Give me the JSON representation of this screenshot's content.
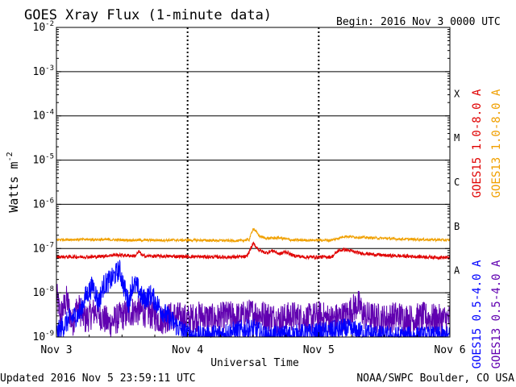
{
  "header": {
    "title": "GOES Xray Flux (1-minute data)",
    "begin_label": "Begin:",
    "begin_value": "2016 Nov 3 0000 UTC"
  },
  "footer": {
    "updated": "Updated 2016 Nov  5 23:59:11 UTC",
    "credit": "NOAA/SWPC Boulder, CO USA"
  },
  "chart_data": {
    "type": "line",
    "title": "GOES Xray Flux (1-minute data)",
    "xlabel": "Universal Time",
    "ylabel": "Watts m",
    "ylabel_sup": "-2",
    "yscale": "log",
    "ylim": [
      1e-09,
      0.01
    ],
    "xlim_days": [
      0,
      3
    ],
    "x_ticks": [
      {
        "day": 0,
        "label": "Nov 3"
      },
      {
        "day": 1,
        "label": "Nov 4"
      },
      {
        "day": 2,
        "label": "Nov 5"
      },
      {
        "day": 3,
        "label": "Nov 6"
      }
    ],
    "y_ticks": [
      {
        "exp": -2,
        "base": "10",
        "sup": "-2"
      },
      {
        "exp": -3,
        "base": "10",
        "sup": "-3"
      },
      {
        "exp": -4,
        "base": "10",
        "sup": "-4"
      },
      {
        "exp": -5,
        "base": "10",
        "sup": "-5"
      },
      {
        "exp": -6,
        "base": "10",
        "sup": "-6"
      },
      {
        "exp": -7,
        "base": "10",
        "sup": "-7"
      },
      {
        "exp": -8,
        "base": "10",
        "sup": "-8"
      },
      {
        "exp": -9,
        "base": "10",
        "sup": "-9"
      }
    ],
    "flare_classes": [
      {
        "label": "X",
        "exp": -4
      },
      {
        "label": "M",
        "exp": -5
      },
      {
        "label": "C",
        "exp": -6
      },
      {
        "label": "B",
        "exp": -7
      },
      {
        "label": "A",
        "exp": -8
      }
    ],
    "grid": "horizontal lines at decades, dotted vertical at day boundaries",
    "series": [
      {
        "name": "GOES15 1.0-8.0 A",
        "color": "#e00000",
        "points": [
          [
            0,
            6.5e-08
          ],
          [
            0.3,
            6.5e-08
          ],
          [
            0.45,
            7.2e-08
          ],
          [
            0.6,
            6.8e-08
          ],
          [
            0.63,
            8.5e-08
          ],
          [
            0.66,
            6.8e-08
          ],
          [
            1.0,
            6.6e-08
          ],
          [
            1.3,
            6.4e-08
          ],
          [
            1.45,
            6.5e-08
          ],
          [
            1.5,
            1.3e-07
          ],
          [
            1.55,
            9e-08
          ],
          [
            1.6,
            8e-08
          ],
          [
            1.65,
            9e-08
          ],
          [
            1.7,
            7.5e-08
          ],
          [
            1.75,
            8.5e-08
          ],
          [
            1.8,
            7e-08
          ],
          [
            1.9,
            6.4e-08
          ],
          [
            2.1,
            6.5e-08
          ],
          [
            2.15,
            9e-08
          ],
          [
            2.2,
            9.5e-08
          ],
          [
            2.3,
            8e-08
          ],
          [
            2.5,
            7e-08
          ],
          [
            2.8,
            6.5e-08
          ],
          [
            3.0,
            6.2e-08
          ]
        ]
      },
      {
        "name": "GOES13 1.0-8.0 A",
        "color": "#f0a000",
        "points": [
          [
            0,
            1.6e-07
          ],
          [
            0.3,
            1.6e-07
          ],
          [
            0.6,
            1.55e-07
          ],
          [
            1.0,
            1.55e-07
          ],
          [
            1.4,
            1.5e-07
          ],
          [
            1.47,
            1.6e-07
          ],
          [
            1.5,
            2.9e-07
          ],
          [
            1.55,
            1.9e-07
          ],
          [
            1.6,
            1.7e-07
          ],
          [
            1.7,
            1.75e-07
          ],
          [
            1.75,
            1.65e-07
          ],
          [
            1.8,
            1.55e-07
          ],
          [
            2.1,
            1.55e-07
          ],
          [
            2.2,
            1.9e-07
          ],
          [
            2.3,
            1.8e-07
          ],
          [
            2.6,
            1.65e-07
          ],
          [
            3.0,
            1.55e-07
          ]
        ]
      },
      {
        "name": "GOES15 0.5-4.0 A",
        "color": "#0000ff",
        "points": [
          [
            0,
            1.2e-09
          ],
          [
            0.1,
            2.5e-09
          ],
          [
            0.18,
            3.5e-09
          ],
          [
            0.22,
            8e-09
          ],
          [
            0.28,
            1.5e-08
          ],
          [
            0.32,
            6e-09
          ],
          [
            0.36,
            1.5e-08
          ],
          [
            0.42,
            2e-08
          ],
          [
            0.48,
            3.4e-08
          ],
          [
            0.52,
            1.2e-08
          ],
          [
            0.55,
            6e-09
          ],
          [
            0.58,
            1.6e-08
          ],
          [
            0.62,
            1.3e-08
          ],
          [
            0.66,
            7e-09
          ],
          [
            0.72,
            9e-09
          ],
          [
            0.78,
            5e-09
          ],
          [
            0.84,
            3e-09
          ],
          [
            0.9,
            2e-09
          ],
          [
            0.98,
            1.2e-09
          ],
          [
            1.1,
            1e-09
          ],
          [
            1.5,
            1.5e-09
          ],
          [
            1.6,
            1e-09
          ],
          [
            2.0,
            1.2e-09
          ],
          [
            2.2,
            1.5e-09
          ],
          [
            2.5,
            1e-09
          ],
          [
            3.0,
            1e-09
          ]
        ]
      },
      {
        "name": "GOES13 0.5-4.0 A",
        "color": "#6000b0",
        "points": [
          [
            0,
            9e-09
          ],
          [
            0.03,
            3e-09
          ],
          [
            0.08,
            7e-09
          ],
          [
            0.12,
            2e-09
          ],
          [
            0.16,
            5e-09
          ],
          [
            0.22,
            2.5e-09
          ],
          [
            0.3,
            4e-09
          ],
          [
            0.4,
            2e-09
          ],
          [
            0.5,
            3e-09
          ],
          [
            0.6,
            4e-09
          ],
          [
            0.7,
            3.5e-09
          ],
          [
            0.8,
            2.5e-09
          ],
          [
            0.9,
            3e-09
          ],
          [
            1.0,
            2.5e-09
          ],
          [
            1.1,
            3e-09
          ],
          [
            1.2,
            2.5e-09
          ],
          [
            1.3,
            3e-09
          ],
          [
            1.4,
            2.8e-09
          ],
          [
            1.5,
            3.5e-09
          ],
          [
            1.6,
            3e-09
          ],
          [
            1.7,
            2.5e-09
          ],
          [
            1.8,
            3e-09
          ],
          [
            1.9,
            2.5e-09
          ],
          [
            2.0,
            3e-09
          ],
          [
            2.1,
            2.5e-09
          ],
          [
            2.2,
            3e-09
          ],
          [
            2.3,
            5.5e-09
          ],
          [
            2.35,
            3e-09
          ],
          [
            2.5,
            2.5e-09
          ],
          [
            2.6,
            3e-09
          ],
          [
            2.7,
            2.5e-09
          ],
          [
            2.8,
            2.8e-09
          ],
          [
            2.9,
            2.5e-09
          ],
          [
            3.0,
            2.5e-09
          ]
        ]
      }
    ]
  }
}
